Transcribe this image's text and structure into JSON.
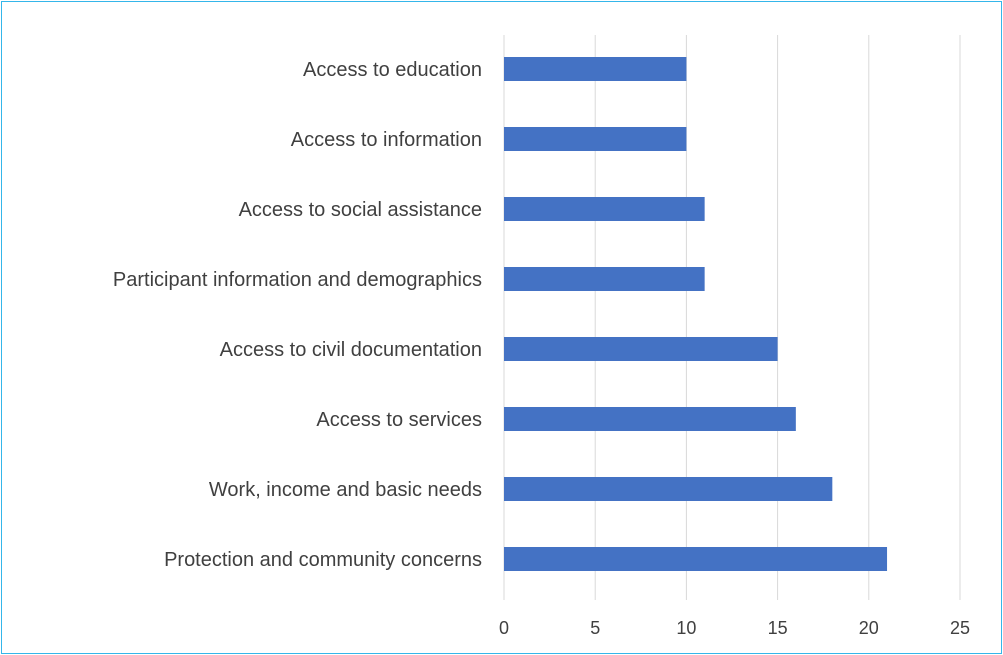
{
  "chart_data": {
    "type": "bar",
    "orientation": "horizontal",
    "categories": [
      "Access to education",
      "Access to information ",
      "Access to social assistance",
      "Participant information and demographics",
      "Access to civil documentation",
      "Access to services ",
      "Work, income and basic needs",
      "Protection and community concerns"
    ],
    "values": [
      10,
      10,
      11,
      11,
      15,
      16,
      18,
      21
    ],
    "title": "",
    "xlabel": "",
    "ylabel": "",
    "xlim": [
      0,
      25
    ],
    "x_ticks": [
      "0",
      "5",
      "10",
      "15",
      "20",
      "25"
    ],
    "grid": "vertical",
    "legend": "none",
    "colors": {
      "bar": "#4472c4",
      "grid": "#d9d9d9",
      "text": "#404040",
      "border": "#35b6ea"
    }
  }
}
